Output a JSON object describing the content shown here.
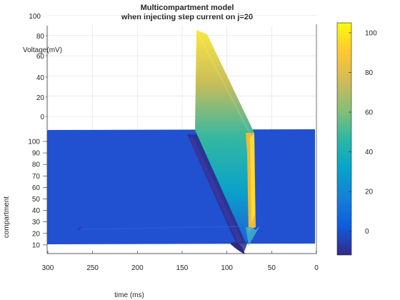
{
  "chart_data": {
    "type": "surface",
    "title": "Multicompartment model",
    "subtitle": "when injecting step current on j=20",
    "xlabel": "time (ms)",
    "ylabel": "compartment",
    "zlabel": "Voltage(mV)",
    "x_ticks": [
      "300",
      "250",
      "200",
      "150",
      "100",
      "50",
      "0"
    ],
    "y_ticks": [
      "100",
      "90",
      "80",
      "70",
      "60",
      "50",
      "40",
      "30",
      "20",
      "10"
    ],
    "z_ticks": [
      "100",
      "80",
      "60",
      "40",
      "20",
      "0"
    ],
    "xlim": [
      0,
      300
    ],
    "ylim": [
      0,
      105
    ],
    "zlim": [
      -12,
      100
    ],
    "colormap": "parula",
    "colorbar": {
      "ticks": [
        "100",
        "80",
        "60",
        "40",
        "20",
        "0"
      ],
      "tick_values": [
        100,
        80,
        60,
        40,
        20,
        0
      ],
      "range": [
        -12,
        105
      ]
    },
    "resting_potential_mV": -3,
    "spike": {
      "peak_mV": 105,
      "injection_compartment": 20,
      "wave_start_time_ms": 80,
      "wave_start_compartment": 2,
      "wave_end_time_ms": 135,
      "wave_end_compartment": 104,
      "after_hyperpolarization_mV": -12
    },
    "grid": true
  }
}
